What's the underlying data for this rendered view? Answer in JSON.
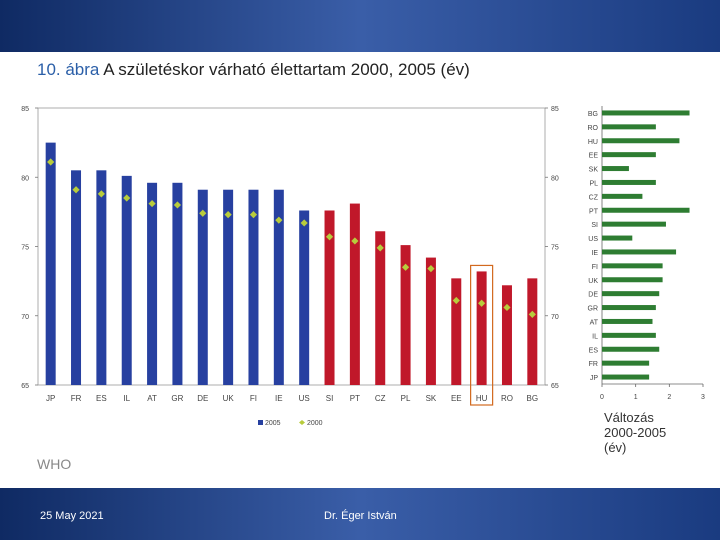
{
  "title": {
    "number": "10. ábra",
    "text": "A születéskor várható élettartam 2000, 2005 (év)"
  },
  "source": "WHO",
  "footer": {
    "date": "25 May 2021",
    "author": "Dr. Éger István"
  },
  "colors": {
    "blue": "#2740a0",
    "red": "#c0182a",
    "diamond": "#b8cc3c",
    "green": "#2e7d32",
    "highlight": "#d2691e"
  },
  "chart_data": [
    {
      "type": "bar",
      "title": "A születéskor várható élettartam 2000, 2005 (év)",
      "categories": [
        "JP",
        "FR",
        "ES",
        "IL",
        "AT",
        "GR",
        "DE",
        "UK",
        "FI",
        "IE",
        "US",
        "SI",
        "PT",
        "CZ",
        "PL",
        "SK",
        "EE",
        "HU",
        "RO",
        "BG"
      ],
      "series": [
        {
          "name": "2005",
          "values": [
            82.5,
            80.5,
            80.5,
            80.1,
            79.6,
            79.6,
            79.1,
            79.1,
            79.1,
            79.1,
            77.6,
            77.6,
            78.1,
            76.1,
            75.1,
            74.2,
            72.7,
            73.2,
            72.2,
            72.7
          ]
        },
        {
          "name": "2000",
          "values": [
            81.1,
            79.1,
            78.8,
            78.5,
            78.1,
            78.0,
            77.4,
            77.3,
            77.3,
            76.9,
            76.7,
            75.7,
            75.4,
            74.9,
            73.5,
            73.4,
            71.1,
            70.9,
            70.6,
            70.1
          ]
        }
      ],
      "red_from_index": 11,
      "highlight": "HU",
      "ylim": [
        65,
        85
      ],
      "yticks": [
        65,
        70,
        75,
        80,
        85
      ],
      "legend": [
        "2005",
        "2000"
      ]
    },
    {
      "type": "bar",
      "orientation": "horizontal",
      "title_lines": [
        "Változás",
        "2000-2005",
        "(év)"
      ],
      "categories": [
        "BG",
        "RO",
        "HU",
        "EE",
        "SK",
        "PL",
        "CZ",
        "PT",
        "SI",
        "US",
        "IE",
        "FI",
        "UK",
        "DE",
        "GR",
        "AT",
        "IL",
        "ES",
        "FR",
        "JP"
      ],
      "values": [
        2.6,
        1.6,
        2.3,
        1.6,
        0.8,
        1.6,
        1.2,
        2.6,
        1.9,
        0.9,
        2.2,
        1.8,
        1.8,
        1.7,
        1.6,
        1.5,
        1.6,
        1.7,
        1.4,
        1.4
      ],
      "xlim": [
        0,
        3
      ],
      "xticks": [
        0,
        1,
        2,
        3
      ]
    }
  ]
}
